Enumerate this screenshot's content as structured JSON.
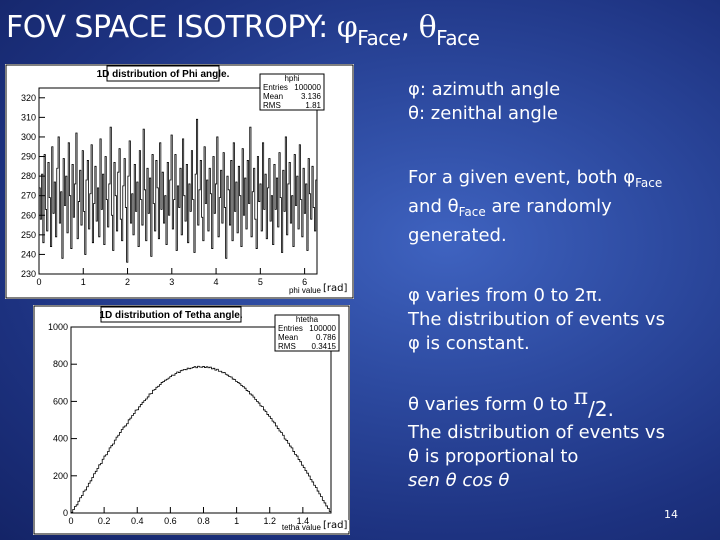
{
  "slide": {
    "title_main": "FOV SPACE ISOTROPY: ",
    "title_phi": "φ",
    "title_sub1": "Face",
    "title_sep": ", ",
    "title_theta": "θ",
    "title_sub2": "Face",
    "page_number": "14"
  },
  "legend": {
    "phi_def": "φ: azimuth angle",
    "theta_def": "θ: zenithal angle"
  },
  "paragraphs": {
    "p1_a": "For a given event, both ",
    "p1_phi": "φ",
    "p1_sub1": "Face",
    "p1_b": "and ",
    "p1_theta": "θ",
    "p1_sub2": "Face",
    "p1_c": " are randomly",
    "p1_d": "generated.",
    "p2_a": " φ varies from 0 to 2π.",
    "p2_b": "The distribution of events vs",
    "p2_c": "φ is constant.",
    "p3_a": " θ varies form 0 to ",
    "p3_pi": "π",
    "p3_den": "/2.",
    "p3_b": "The distribution of events vs",
    "p3_c": "θ is proportional to",
    "p3_d": "sen θ cos θ"
  },
  "chart_data": [
    {
      "type": "bar",
      "title": "1D distribution of Phi angle.",
      "stats_box": {
        "name": "hphi",
        "rows": [
          [
            "Entries",
            "100000"
          ],
          [
            "Mean",
            "3.136"
          ],
          [
            "RMS",
            "1.81"
          ]
        ]
      },
      "xlabel": "phi value",
      "unit_note": "[rad]",
      "xlim": [
        0,
        6.28
      ],
      "ylim": [
        230,
        325
      ],
      "x_ticks": [
        "0",
        "1",
        "2",
        "3",
        "4",
        "5",
        "6"
      ],
      "y_ticks": [
        "230",
        "240",
        "250",
        "260",
        "270",
        "280",
        "290",
        "300",
        "310",
        "320"
      ],
      "values": [
        274,
        258,
        281,
        246,
        291,
        263,
        252,
        287,
        269,
        244,
        295,
        261,
        277,
        249,
        284,
        300,
        256,
        272,
        238,
        289,
        265,
        280,
        251,
        297,
        270,
        243,
        286,
        259,
        276,
        302,
        248,
        267,
        283,
        255,
        293,
        262,
        240,
        278,
        288,
        253,
        271,
        296,
        246,
        266,
        285,
        257,
        274,
        249,
        299,
        263,
        281,
        245,
        290,
        268,
        254,
        276,
        305,
        260,
        242,
        287,
        270,
        252,
        282,
        294,
        258,
        247,
        275,
        289,
        264,
        236,
        280,
        298,
        256,
        271,
        250,
        286,
        262,
        277,
        244,
        293,
        268,
        255,
        304,
        273,
        247,
        284,
        261,
        279,
        239,
        291,
        266,
        252,
        288,
        274,
        248,
        297,
        263,
        282,
        256,
        270,
        245,
        287,
        260,
        278,
        301,
        253,
        268,
        291,
        242,
        275,
        264,
        284,
        250,
        299,
        270,
        257,
        286,
        246,
        276,
        262,
        293,
        268,
        241,
        281,
        309,
        255,
        273,
        288,
        259,
        247,
        295,
        266,
        278,
        252,
        284,
        271,
        243,
        290,
        261,
        276,
        300,
        249,
        269,
        283,
        256,
        292,
        264,
        238,
        280,
        273,
        255,
        288,
        247,
        297,
        262,
        277,
        251,
        285,
        270,
        244,
        294,
        260,
        279,
        253,
        288,
        266,
        305,
        249,
        272,
        284,
        258,
        243,
        290,
        267,
        276,
        252,
        297,
        263,
        281,
        248,
        274,
        289,
        257,
        270,
        245,
        286,
        263,
        279,
        254,
        292,
        269,
        241,
        283,
        262,
        300,
        250,
        276,
        287,
        256,
        270,
        244,
        291,
        265,
        280,
        253,
        296,
        268,
        249,
        284,
        261,
        276,
        242,
        289,
        271,
        258,
        285,
        264,
        252,
        278
      ]
    },
    {
      "type": "bar",
      "title": "1D distribution of Tetha angle.",
      "stats_box": {
        "name": "htetha",
        "rows": [
          [
            "Entries",
            "100000"
          ],
          [
            "Mean",
            "0.786"
          ],
          [
            "RMS",
            "0.3415"
          ]
        ]
      },
      "xlabel": "tetha value",
      "unit_note": "[rad]",
      "xlim": [
        0,
        1.57
      ],
      "ylim": [
        0,
        1000
      ],
      "x_ticks": [
        "0",
        "0.2",
        "0.4",
        "0.6",
        "0.8",
        "1",
        "1.2",
        "1.4"
      ],
      "y_ticks": [
        "0",
        "200",
        "400",
        "600",
        "800",
        "1000"
      ],
      "values": [
        4,
        19,
        35,
        44,
        63,
        82,
        94,
        117,
        124,
        141,
        160,
        173,
        191,
        211,
        224,
        240,
        259,
        266,
        289,
        306,
        313,
        330,
        350,
        362,
        371,
        392,
        408,
        418,
        433,
        449,
        462,
        468,
        480,
        501,
        510,
        524,
        535,
        553,
        555,
        571,
        583,
        595,
        604,
        613,
        624,
        640,
        642,
        660,
        664,
        676,
        681,
        690,
        702,
        707,
        714,
        719,
        725,
        733,
        741,
        741,
        750,
        758,
        755,
        765,
        768,
        772,
        770,
        779,
        776,
        779,
        782,
        787,
        781,
        789,
        785,
        784,
        788,
        782,
        786,
        781,
        784,
        775,
        778,
        768,
        773,
        762,
        762,
        754,
        755,
        746,
        741,
        733,
        731,
        720,
        717,
        707,
        702,
        695,
        685,
        679,
        671,
        659,
        654,
        640,
        634,
        623,
        611,
        600,
        591,
        576,
        572,
        554,
        545,
        530,
        520,
        508,
        494,
        485,
        468,
        454,
        441,
        432,
        418,
        398,
        390,
        375,
        360,
        350,
        331,
        315,
        306,
        288,
        276,
        257,
        244,
        228,
        214,
        199,
        180,
        167,
        149,
        137,
        118,
        103,
        88,
        68,
        54,
        38,
        24,
        8
      ]
    }
  ]
}
